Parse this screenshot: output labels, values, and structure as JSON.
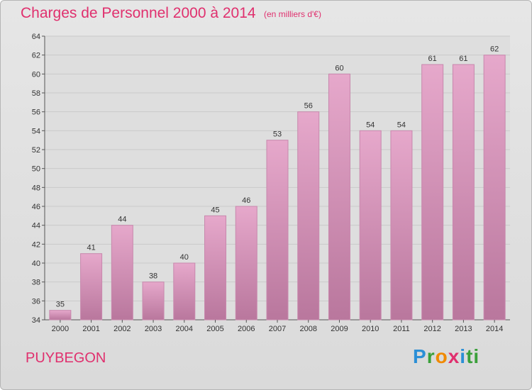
{
  "header": {
    "title": "Charges de Personnel 2000 à 2014",
    "subtitle": "(en milliers d'€)"
  },
  "footer": {
    "commune": "PUYBEGON",
    "logo": "Proxiti"
  },
  "colors": {
    "title": "#e0306e",
    "bar_light": "#e6a8cb",
    "bar_dark": "#b9779d"
  },
  "chart_data": {
    "type": "bar",
    "title": "Charges de Personnel 2000 à 2014",
    "subtitle": "(en milliers d'€)",
    "categories": [
      "2000",
      "2001",
      "2002",
      "2003",
      "2004",
      "2005",
      "2006",
      "2007",
      "2008",
      "2009",
      "2010",
      "2011",
      "2012",
      "2013",
      "2014"
    ],
    "values": [
      35,
      41,
      44,
      38,
      40,
      45,
      46,
      53,
      56,
      60,
      54,
      54,
      61,
      61,
      62
    ],
    "ylim": [
      34,
      64
    ],
    "yticks": [
      34,
      36,
      38,
      40,
      42,
      44,
      46,
      48,
      50,
      52,
      54,
      56,
      58,
      60,
      62,
      64
    ],
    "grid": true,
    "data_labels": true
  }
}
